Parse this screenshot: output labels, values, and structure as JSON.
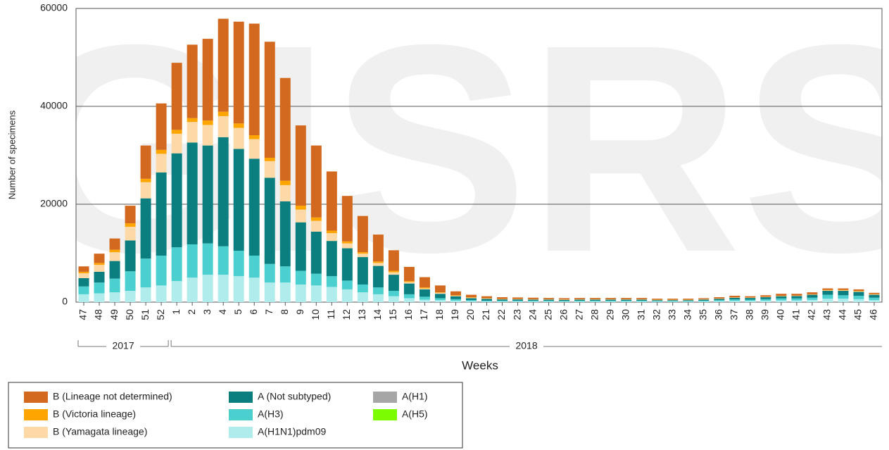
{
  "chart_data": {
    "type": "stacked_bar",
    "watermark": "GISRS",
    "y_label": "Number of specimens",
    "x_label": "Weeks",
    "categories": [
      "47",
      "48",
      "49",
      "50",
      "51",
      "52",
      "1",
      "2",
      "3",
      "4",
      "5",
      "6",
      "7",
      "8",
      "9",
      "10",
      "11",
      "12",
      "13",
      "14",
      "15",
      "16",
      "17",
      "18",
      "19",
      "20",
      "21",
      "22",
      "23",
      "24",
      "25",
      "26",
      "27",
      "28",
      "29",
      "30",
      "31",
      "32",
      "33",
      "34",
      "35",
      "36",
      "37",
      "38",
      "39",
      "40",
      "41",
      "42",
      "43",
      "44",
      "45",
      "46"
    ],
    "category_years": [
      "2017",
      "2017",
      "2017",
      "2017",
      "2017",
      "2017",
      "2018",
      "2018",
      "2018",
      "2018",
      "2018",
      "2018",
      "2018",
      "2018",
      "2018",
      "2018",
      "2018",
      "2018",
      "2018",
      "2018",
      "2018",
      "2018",
      "2018",
      "2018",
      "2018",
      "2018",
      "2018",
      "2018",
      "2018",
      "2018",
      "2018",
      "2018",
      "2018",
      "2018",
      "2018",
      "2018",
      "2018",
      "2018",
      "2018",
      "2018",
      "2018",
      "2018",
      "2018",
      "2018",
      "2018",
      "2018",
      "2018",
      "2018",
      "2018",
      "2018",
      "2018",
      "2018"
    ],
    "ylim": [
      0,
      60000
    ],
    "yticks": [
      0,
      20000,
      40000,
      60000
    ],
    "grid": true,
    "series": [
      {
        "name": "A(H1N1)pdm09",
        "color": "#b0ecec",
        "values": [
          1600,
          1800,
          2000,
          2300,
          3000,
          3400,
          4300,
          5000,
          5600,
          5600,
          5300,
          5000,
          4000,
          4000,
          3600,
          3400,
          3100,
          2600,
          2000,
          1600,
          1200,
          800,
          500,
          400,
          300,
          200,
          150,
          150,
          150,
          150,
          150,
          100,
          150,
          150,
          150,
          150,
          150,
          100,
          100,
          100,
          150,
          200,
          250,
          250,
          300,
          350,
          350,
          450,
          700,
          700,
          600,
          400
        ]
      },
      {
        "name": "A(H3)",
        "color": "#4ccfcf",
        "values": [
          1600,
          2200,
          2800,
          4000,
          5900,
          6100,
          6900,
          6800,
          6400,
          5800,
          5200,
          4500,
          3800,
          3300,
          2800,
          2400,
          2200,
          1800,
          1600,
          1400,
          1100,
          800,
          600,
          400,
          300,
          200,
          150,
          150,
          150,
          150,
          150,
          150,
          150,
          150,
          150,
          150,
          150,
          150,
          150,
          150,
          150,
          200,
          300,
          250,
          300,
          400,
          400,
          450,
          800,
          700,
          700,
          500
        ]
      },
      {
        "name": "A (Not subtyped)",
        "color": "#0b7f80",
        "values": [
          1700,
          2200,
          3600,
          6300,
          12300,
          17000,
          19200,
          20800,
          20000,
          22300,
          20800,
          19800,
          17600,
          13300,
          9900,
          8600,
          7200,
          6600,
          5600,
          4400,
          3300,
          2200,
          1500,
          900,
          600,
          400,
          350,
          250,
          250,
          200,
          200,
          200,
          200,
          200,
          200,
          200,
          200,
          150,
          150,
          150,
          200,
          250,
          350,
          350,
          400,
          450,
          500,
          600,
          800,
          900,
          800,
          600
        ]
      },
      {
        "name": "A(H1)",
        "color": "#a6a6a6",
        "values": [
          0,
          0,
          0,
          0,
          0,
          0,
          0,
          0,
          0,
          0,
          0,
          0,
          0,
          0,
          0,
          0,
          0,
          0,
          0,
          0,
          0,
          0,
          0,
          0,
          0,
          0,
          0,
          0,
          0,
          0,
          0,
          0,
          0,
          0,
          0,
          0,
          0,
          0,
          0,
          0,
          0,
          0,
          0,
          0,
          0,
          0,
          0,
          0,
          0,
          0,
          0,
          0
        ]
      },
      {
        "name": "A(H5)",
        "color": "#7cfc00",
        "values": [
          0,
          0,
          0,
          0,
          0,
          0,
          0,
          0,
          0,
          0,
          0,
          0,
          0,
          0,
          0,
          0,
          0,
          0,
          0,
          0,
          0,
          0,
          0,
          0,
          0,
          0,
          0,
          0,
          0,
          0,
          0,
          0,
          0,
          0,
          0,
          0,
          0,
          0,
          0,
          0,
          0,
          0,
          0,
          0,
          0,
          0,
          0,
          0,
          0,
          0,
          0,
          0
        ]
      },
      {
        "name": "B (Yamagata lineage)",
        "color": "#fdd9a8",
        "values": [
          1000,
          1400,
          1800,
          2800,
          3300,
          3800,
          4000,
          4200,
          4200,
          4300,
          4300,
          4000,
          3400,
          3300,
          2600,
          2200,
          1600,
          1000,
          700,
          600,
          500,
          300,
          200,
          200,
          100,
          100,
          100,
          50,
          50,
          50,
          50,
          50,
          50,
          50,
          50,
          50,
          50,
          50,
          50,
          50,
          50,
          50,
          50,
          50,
          50,
          50,
          50,
          50,
          100,
          100,
          100,
          100
        ]
      },
      {
        "name": "B (Victoria lineage)",
        "color": "#ffa500",
        "values": [
          300,
          400,
          500,
          700,
          700,
          800,
          800,
          800,
          900,
          900,
          900,
          800,
          700,
          900,
          800,
          700,
          500,
          400,
          300,
          300,
          300,
          200,
          200,
          100,
          100,
          100,
          50,
          50,
          50,
          50,
          50,
          50,
          50,
          50,
          50,
          50,
          50,
          50,
          50,
          50,
          50,
          50,
          50,
          50,
          50,
          50,
          50,
          50,
          100,
          100,
          100,
          50
        ]
      },
      {
        "name": "B (Lineage not determined)",
        "color": "#d2691e",
        "values": [
          1100,
          1900,
          2300,
          3600,
          6800,
          9500,
          13700,
          15000,
          16700,
          19000,
          20800,
          22800,
          23700,
          21000,
          16400,
          14700,
          12100,
          9300,
          7400,
          5500,
          4200,
          2900,
          2100,
          1400,
          800,
          500,
          400,
          350,
          300,
          300,
          250,
          250,
          250,
          250,
          250,
          250,
          250,
          200,
          200,
          200,
          200,
          250,
          300,
          250,
          300,
          400,
          350,
          400,
          300,
          300,
          300,
          250
        ]
      }
    ]
  }
}
